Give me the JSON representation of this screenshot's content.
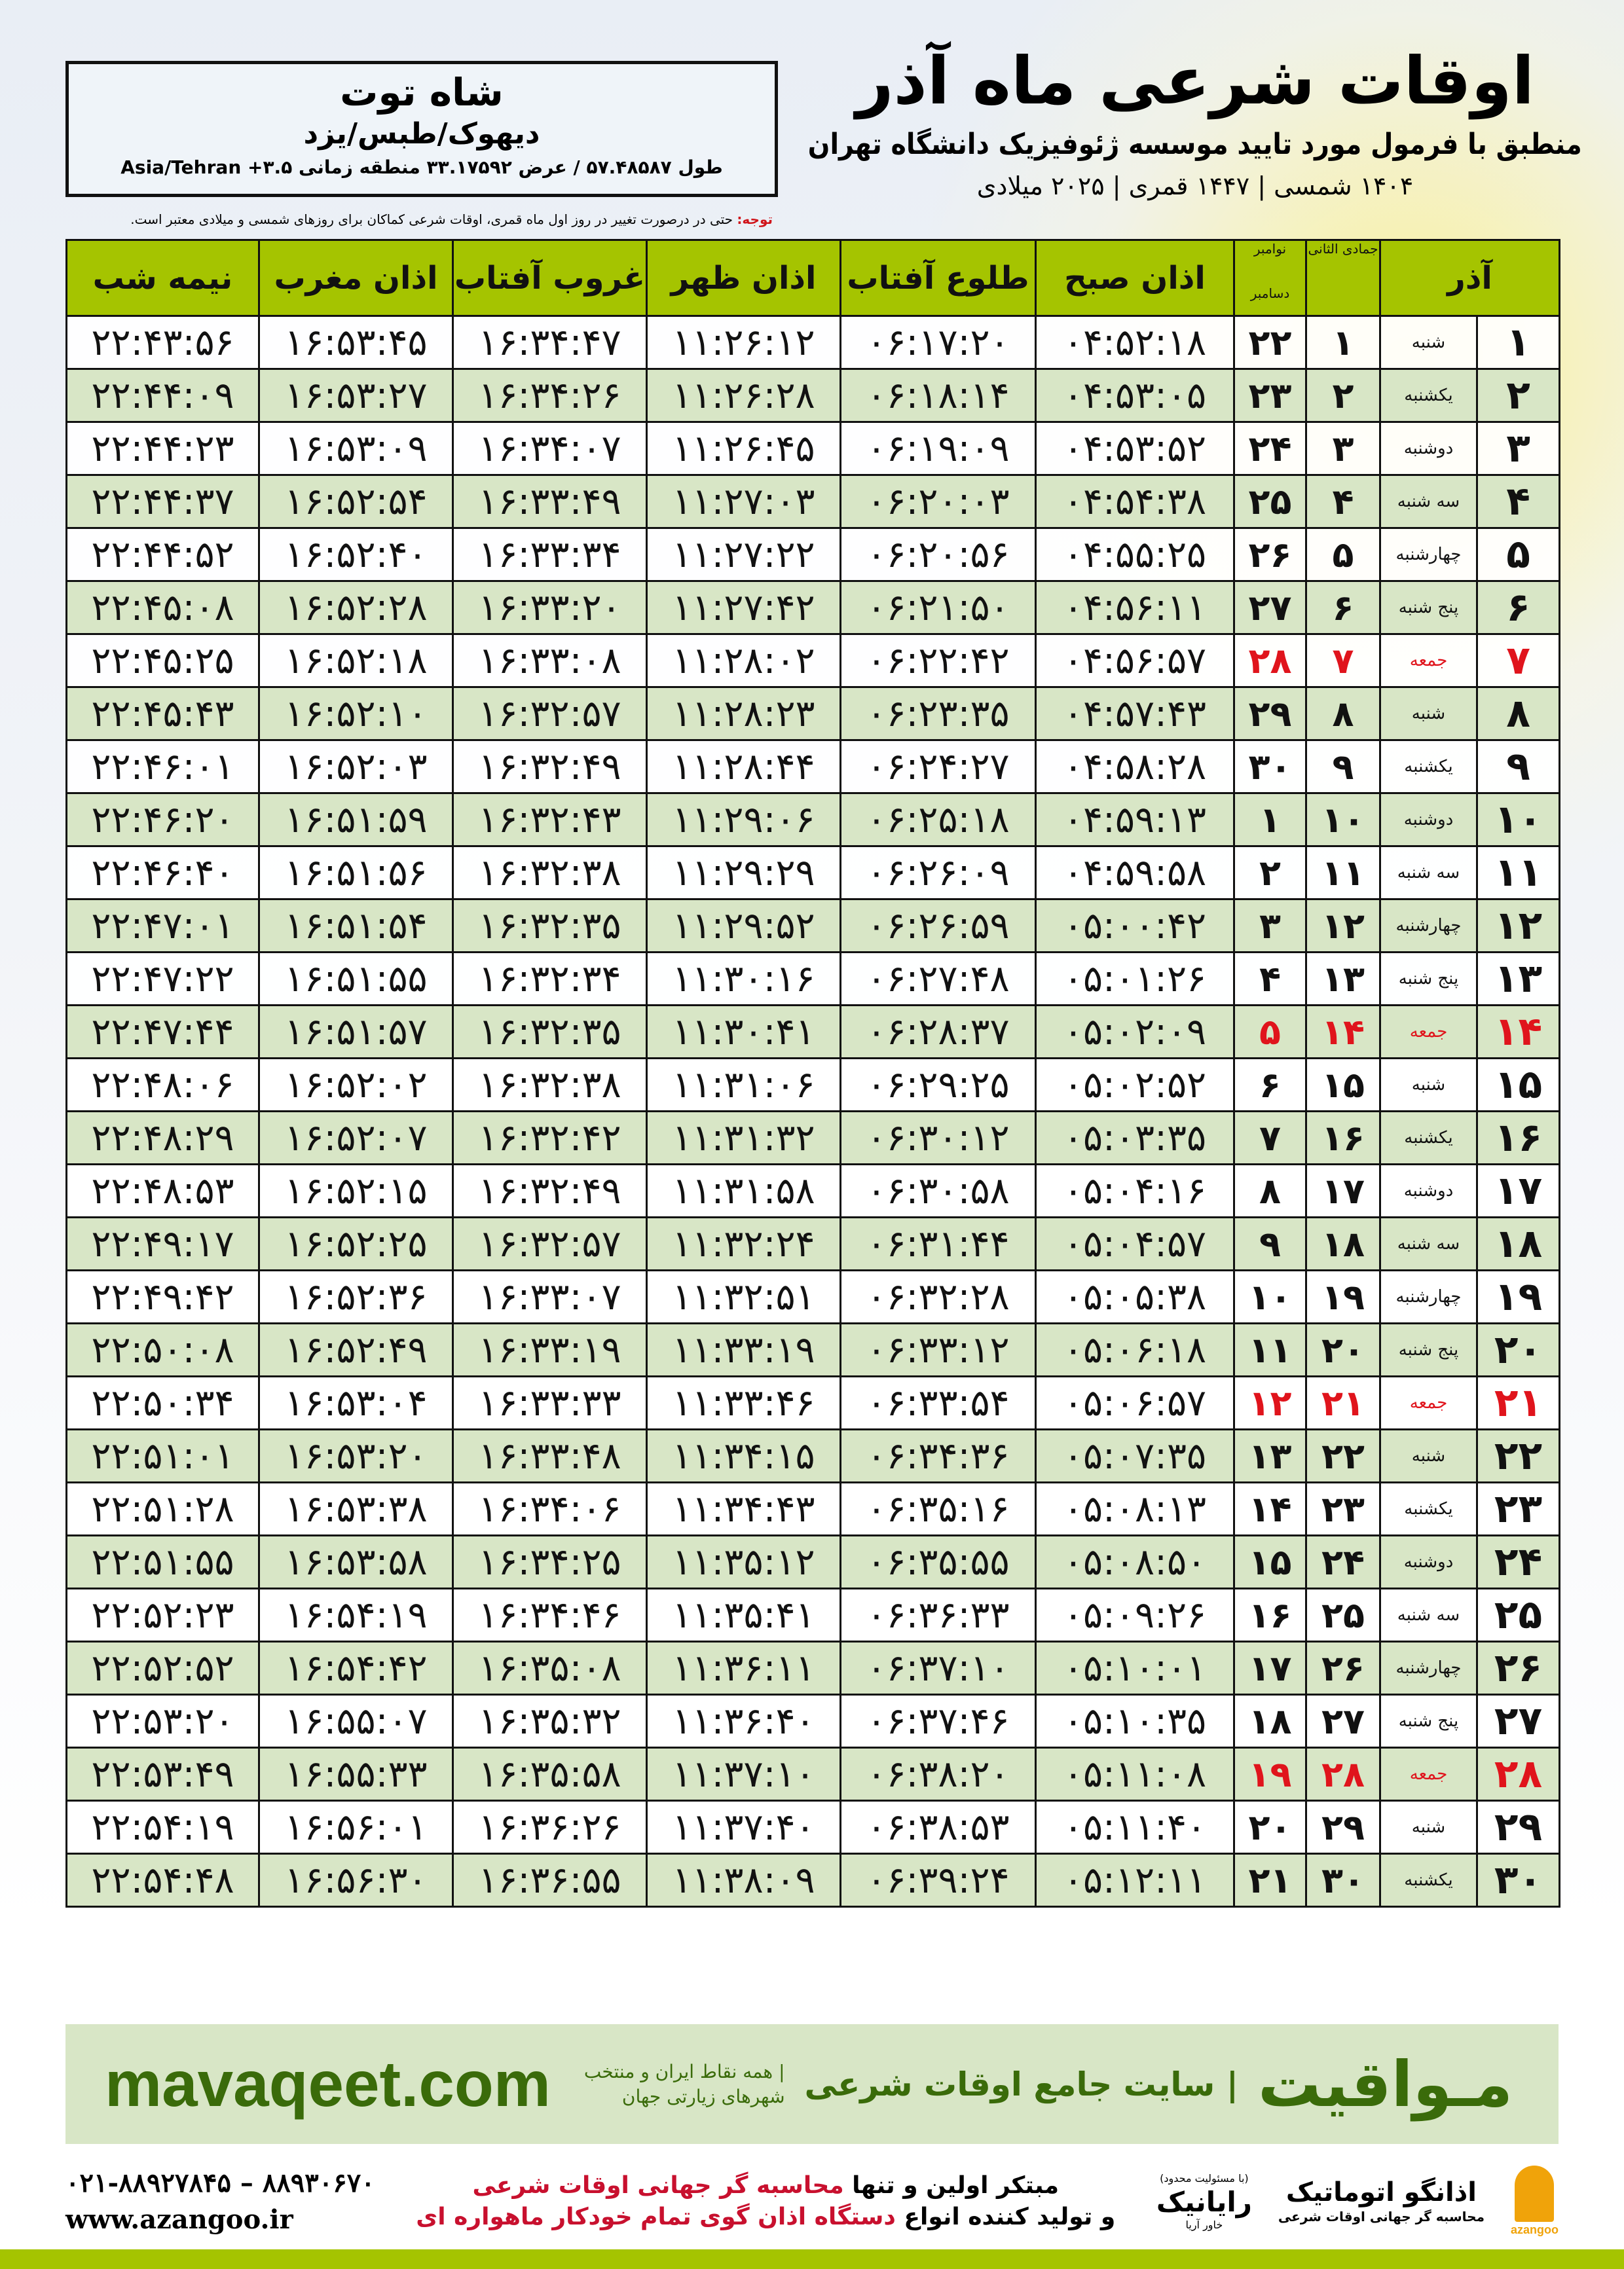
{
  "location": {
    "city": "شاه توت",
    "region": "دیهوک/طبس/یزد",
    "coords": "طول ۵۷.۴۸۵۸۷ / عرض ۳۳.۱۷۵۹۲ منطقه زمانی ۳.۵+ Asia/Tehran"
  },
  "header": {
    "title": "اوقات شرعی ماه آذر",
    "subtitle": "منطبق با فرمول مورد تایید موسسه ژئوفیزیک دانشگاه تهران",
    "years": "۱۴۰۴ شمسی | ۱۴۴۷ قمری | ۲۰۲۵ میلادی"
  },
  "note": {
    "label": "توجه:",
    "text": " حتی در درصورت تغییر در روز اول ماه قمری، اوقات شرعی کماکان برای روزهای شمسی و میلادی معتبر است."
  },
  "table": {
    "headers": {
      "azar": "آذر",
      "jumada": "جمادی الثانی",
      "november": "نوامبر",
      "december": "دسامبر",
      "fajr": "اذان صبح",
      "sunrise": "طلوع آفتاب",
      "dhuhr": "اذان ظهر",
      "sunset": "غروب آفتاب",
      "maghrib": "اذان مغرب",
      "midnight": "نیمه شب"
    },
    "highlight_color": "#e0141c",
    "rows": [
      [
        "۱",
        "شنبه",
        "۱",
        "۲۲",
        "۰۴:۵۲:۱۸",
        "۰۶:۱۷:۲۰",
        "۱۱:۲۶:۱۲",
        "۱۶:۳۴:۴۷",
        "۱۶:۵۳:۴۵",
        "۲۲:۴۳:۵۶"
      ],
      [
        "۲",
        "یکشنبه",
        "۲",
        "۲۳",
        "۰۴:۵۳:۰۵",
        "۰۶:۱۸:۱۴",
        "۱۱:۲۶:۲۸",
        "۱۶:۳۴:۲۶",
        "۱۶:۵۳:۲۷",
        "۲۲:۴۴:۰۹"
      ],
      [
        "۳",
        "دوشنبه",
        "۳",
        "۲۴",
        "۰۴:۵۳:۵۲",
        "۰۶:۱۹:۰۹",
        "۱۱:۲۶:۴۵",
        "۱۶:۳۴:۰۷",
        "۱۶:۵۳:۰۹",
        "۲۲:۴۴:۲۳"
      ],
      [
        "۴",
        "سه شنبه",
        "۴",
        "۲۵",
        "۰۴:۵۴:۳۸",
        "۰۶:۲۰:۰۳",
        "۱۱:۲۷:۰۳",
        "۱۶:۳۳:۴۹",
        "۱۶:۵۲:۵۴",
        "۲۲:۴۴:۳۷"
      ],
      [
        "۵",
        "چهارشنبه",
        "۵",
        "۲۶",
        "۰۴:۵۵:۲۵",
        "۰۶:۲۰:۵۶",
        "۱۱:۲۷:۲۲",
        "۱۶:۳۳:۳۴",
        "۱۶:۵۲:۴۰",
        "۲۲:۴۴:۵۲"
      ],
      [
        "۶",
        "پنج شنبه",
        "۶",
        "۲۷",
        "۰۴:۵۶:۱۱",
        "۰۶:۲۱:۵۰",
        "۱۱:۲۷:۴۲",
        "۱۶:۳۳:۲۰",
        "۱۶:۵۲:۲۸",
        "۲۲:۴۵:۰۸"
      ],
      [
        "۷",
        "جمعه",
        "۷",
        "۲۸",
        "۰۴:۵۶:۵۷",
        "۰۶:۲۲:۴۲",
        "۱۱:۲۸:۰۲",
        "۱۶:۳۳:۰۸",
        "۱۶:۵۲:۱۸",
        "۲۲:۴۵:۲۵"
      ],
      [
        "۸",
        "شنبه",
        "۸",
        "۲۹",
        "۰۴:۵۷:۴۳",
        "۰۶:۲۳:۳۵",
        "۱۱:۲۸:۲۳",
        "۱۶:۳۲:۵۷",
        "۱۶:۵۲:۱۰",
        "۲۲:۴۵:۴۳"
      ],
      [
        "۹",
        "یکشنبه",
        "۹",
        "۳۰",
        "۰۴:۵۸:۲۸",
        "۰۶:۲۴:۲۷",
        "۱۱:۲۸:۴۴",
        "۱۶:۳۲:۴۹",
        "۱۶:۵۲:۰۳",
        "۲۲:۴۶:۰۱"
      ],
      [
        "۱۰",
        "دوشنبه",
        "۱۰",
        "۱",
        "۰۴:۵۹:۱۳",
        "۰۶:۲۵:۱۸",
        "۱۱:۲۹:۰۶",
        "۱۶:۳۲:۴۳",
        "۱۶:۵۱:۵۹",
        "۲۲:۴۶:۲۰"
      ],
      [
        "۱۱",
        "سه شنبه",
        "۱۱",
        "۲",
        "۰۴:۵۹:۵۸",
        "۰۶:۲۶:۰۹",
        "۱۱:۲۹:۲۹",
        "۱۶:۳۲:۳۸",
        "۱۶:۵۱:۵۶",
        "۲۲:۴۶:۴۰"
      ],
      [
        "۱۲",
        "چهارشنبه",
        "۱۲",
        "۳",
        "۰۵:۰۰:۴۲",
        "۰۶:۲۶:۵۹",
        "۱۱:۲۹:۵۲",
        "۱۶:۳۲:۳۵",
        "۱۶:۵۱:۵۴",
        "۲۲:۴۷:۰۱"
      ],
      [
        "۱۳",
        "پنج شنبه",
        "۱۳",
        "۴",
        "۰۵:۰۱:۲۶",
        "۰۶:۲۷:۴۸",
        "۱۱:۳۰:۱۶",
        "۱۶:۳۲:۳۴",
        "۱۶:۵۱:۵۵",
        "۲۲:۴۷:۲۲"
      ],
      [
        "۱۴",
        "جمعه",
        "۱۴",
        "۵",
        "۰۵:۰۲:۰۹",
        "۰۶:۲۸:۳۷",
        "۱۱:۳۰:۴۱",
        "۱۶:۳۲:۳۵",
        "۱۶:۵۱:۵۷",
        "۲۲:۴۷:۴۴"
      ],
      [
        "۱۵",
        "شنبه",
        "۱۵",
        "۶",
        "۰۵:۰۲:۵۲",
        "۰۶:۲۹:۲۵",
        "۱۱:۳۱:۰۶",
        "۱۶:۳۲:۳۸",
        "۱۶:۵۲:۰۲",
        "۲۲:۴۸:۰۶"
      ],
      [
        "۱۶",
        "یکشنبه",
        "۱۶",
        "۷",
        "۰۵:۰۳:۳۵",
        "۰۶:۳۰:۱۲",
        "۱۱:۳۱:۳۲",
        "۱۶:۳۲:۴۲",
        "۱۶:۵۲:۰۷",
        "۲۲:۴۸:۲۹"
      ],
      [
        "۱۷",
        "دوشنبه",
        "۱۷",
        "۸",
        "۰۵:۰۴:۱۶",
        "۰۶:۳۰:۵۸",
        "۱۱:۳۱:۵۸",
        "۱۶:۳۲:۴۹",
        "۱۶:۵۲:۱۵",
        "۲۲:۴۸:۵۳"
      ],
      [
        "۱۸",
        "سه شنبه",
        "۱۸",
        "۹",
        "۰۵:۰۴:۵۷",
        "۰۶:۳۱:۴۴",
        "۱۱:۳۲:۲۴",
        "۱۶:۳۲:۵۷",
        "۱۶:۵۲:۲۵",
        "۲۲:۴۹:۱۷"
      ],
      [
        "۱۹",
        "چهارشنبه",
        "۱۹",
        "۱۰",
        "۰۵:۰۵:۳۸",
        "۰۶:۳۲:۲۸",
        "۱۱:۳۲:۵۱",
        "۱۶:۳۳:۰۷",
        "۱۶:۵۲:۳۶",
        "۲۲:۴۹:۴۲"
      ],
      [
        "۲۰",
        "پنج شنبه",
        "۲۰",
        "۱۱",
        "۰۵:۰۶:۱۸",
        "۰۶:۳۳:۱۲",
        "۱۱:۳۳:۱۹",
        "۱۶:۳۳:۱۹",
        "۱۶:۵۲:۴۹",
        "۲۲:۵۰:۰۸"
      ],
      [
        "۲۱",
        "جمعه",
        "۲۱",
        "۱۲",
        "۰۵:۰۶:۵۷",
        "۰۶:۳۳:۵۴",
        "۱۱:۳۳:۴۶",
        "۱۶:۳۳:۳۳",
        "۱۶:۵۳:۰۴",
        "۲۲:۵۰:۳۴"
      ],
      [
        "۲۲",
        "شنبه",
        "۲۲",
        "۱۳",
        "۰۵:۰۷:۳۵",
        "۰۶:۳۴:۳۶",
        "۱۱:۳۴:۱۵",
        "۱۶:۳۳:۴۸",
        "۱۶:۵۳:۲۰",
        "۲۲:۵۱:۰۱"
      ],
      [
        "۲۳",
        "یکشنبه",
        "۲۳",
        "۱۴",
        "۰۵:۰۸:۱۳",
        "۰۶:۳۵:۱۶",
        "۱۱:۳۴:۴۳",
        "۱۶:۳۴:۰۶",
        "۱۶:۵۳:۳۸",
        "۲۲:۵۱:۲۸"
      ],
      [
        "۲۴",
        "دوشنبه",
        "۲۴",
        "۱۵",
        "۰۵:۰۸:۵۰",
        "۰۶:۳۵:۵۵",
        "۱۱:۳۵:۱۲",
        "۱۶:۳۴:۲۵",
        "۱۶:۵۳:۵۸",
        "۲۲:۵۱:۵۵"
      ],
      [
        "۲۵",
        "سه شنبه",
        "۲۵",
        "۱۶",
        "۰۵:۰۹:۲۶",
        "۰۶:۳۶:۳۳",
        "۱۱:۳۵:۴۱",
        "۱۶:۳۴:۴۶",
        "۱۶:۵۴:۱۹",
        "۲۲:۵۲:۲۳"
      ],
      [
        "۲۶",
        "چهارشنبه",
        "۲۶",
        "۱۷",
        "۰۵:۱۰:۰۱",
        "۰۶:۳۷:۱۰",
        "۱۱:۳۶:۱۱",
        "۱۶:۳۵:۰۸",
        "۱۶:۵۴:۴۲",
        "۲۲:۵۲:۵۲"
      ],
      [
        "۲۷",
        "پنج شنبه",
        "۲۷",
        "۱۸",
        "۰۵:۱۰:۳۵",
        "۰۶:۳۷:۴۶",
        "۱۱:۳۶:۴۰",
        "۱۶:۳۵:۳۲",
        "۱۶:۵۵:۰۷",
        "۲۲:۵۳:۲۰"
      ],
      [
        "۲۸",
        "جمعه",
        "۲۸",
        "۱۹",
        "۰۵:۱۱:۰۸",
        "۰۶:۳۸:۲۰",
        "۱۱:۳۷:۱۰",
        "۱۶:۳۵:۵۸",
        "۱۶:۵۵:۳۳",
        "۲۲:۵۳:۴۹"
      ],
      [
        "۲۹",
        "شنبه",
        "۲۹",
        "۲۰",
        "۰۵:۱۱:۴۰",
        "۰۶:۳۸:۵۳",
        "۱۱:۳۷:۴۰",
        "۱۶:۳۶:۲۶",
        "۱۶:۵۶:۰۱",
        "۲۲:۵۴:۱۹"
      ],
      [
        "۳۰",
        "یکشنبه",
        "۳۰",
        "۲۱",
        "۰۵:۱۲:۱۱",
        "۰۶:۳۹:۲۴",
        "۱۱:۳۸:۰۹",
        "۱۶:۳۶:۵۵",
        "۱۶:۵۶:۳۰",
        "۲۲:۵۴:۴۸"
      ]
    ]
  },
  "banner": {
    "brand": "مـواقیت",
    "tagline": "| سایت جامع اوقات شرعی",
    "tagline2": "| همه نقاط ایران و منتخب شهرهای زیارتی جهان",
    "site": "mavaqeet.com"
  },
  "footer": {
    "phones": "۰۲۱-۸۸۹۲۷۸۴۵ – ۸۸۹۳۰۶۷۰",
    "website": "www.azangoo.ir",
    "promo_line1_a": "مبتکر اولین و تنها ",
    "promo_line1_b": "محاسبه گر جهانی اوقات شرعی",
    "promo_line2_a": "و تولید کننده انواع ",
    "promo_line2_b": "دستگاه اذان گوی تمام خودکار ماهواره ای",
    "logo_rayanik": "رایانیک",
    "logo_rayanik_sub": "خاور آریا",
    "logo_rayanik_note": "(با مسئولیت محدود)",
    "logo_azangoo": "اذانگو اتوماتیک",
    "logo_azangoo_sub": "محاسبه گر جهانی اوقات شرعی",
    "logo_azangoo_en": "azangoo"
  }
}
